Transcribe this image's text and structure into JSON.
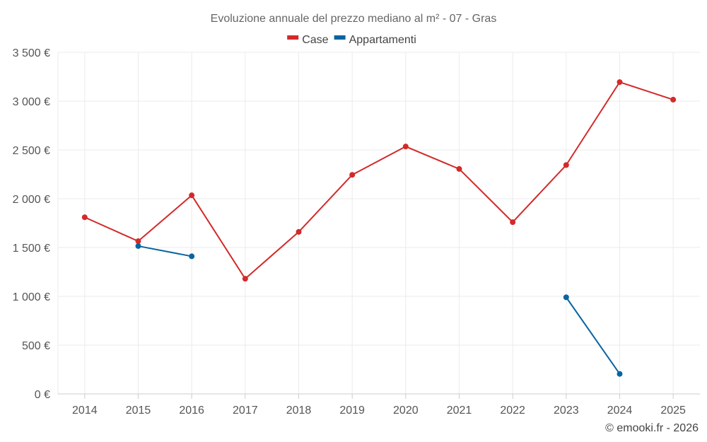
{
  "chart_data": {
    "type": "line",
    "title": "Evoluzione annuale del prezzo mediano al m² - 07 - Gras",
    "categories": [
      "2014",
      "2015",
      "2016",
      "2017",
      "2018",
      "2019",
      "2020",
      "2021",
      "2022",
      "2023",
      "2024",
      "2025"
    ],
    "ylim": [
      0,
      3500
    ],
    "yticks": [
      0,
      500,
      1000,
      1500,
      2000,
      2500,
      3000,
      3500
    ],
    "ytick_labels": [
      "0 €",
      "500 €",
      "1 000 €",
      "1 500 €",
      "2 000 €",
      "2 500 €",
      "3 000 €",
      "3 500 €"
    ],
    "grid": true,
    "legend_position": "top-center",
    "series": [
      {
        "name": "Case",
        "color": "#d32a2a",
        "values": [
          1810,
          1565,
          2035,
          1180,
          1660,
          2245,
          2535,
          2305,
          1760,
          2345,
          3195,
          3015
        ]
      },
      {
        "name": "Appartamenti",
        "color": "#0a64a0",
        "values": [
          null,
          1515,
          1410,
          null,
          null,
          null,
          null,
          null,
          null,
          990,
          205,
          null
        ]
      }
    ]
  },
  "credit": "© emooki.fr - 2026"
}
